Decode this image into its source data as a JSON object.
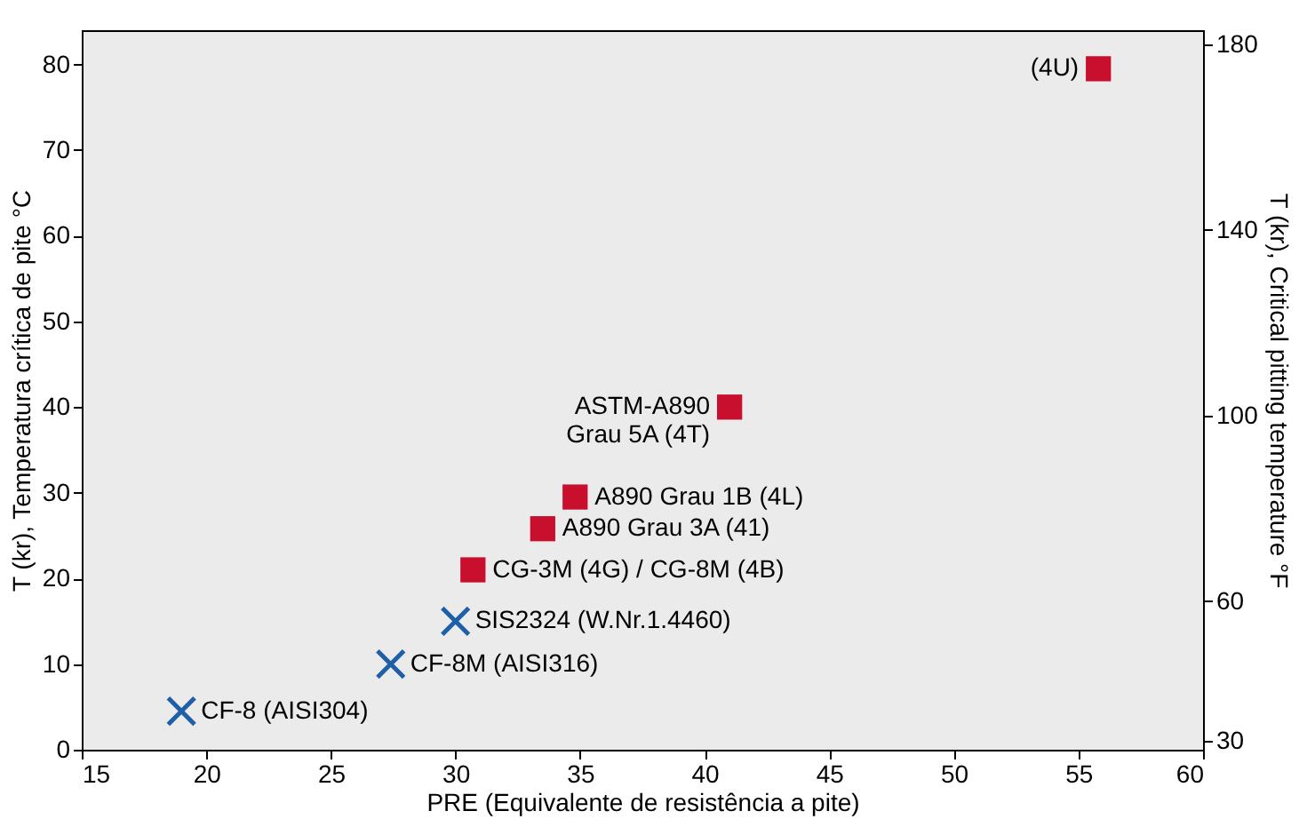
{
  "chart_data": {
    "type": "scatter",
    "xlabel": "PRE (Equivalente de resistência a pite)",
    "ylabel": "T (kr), Temperatura crítica de pite  °C",
    "y2label": "T (kr), Critical pitting temperature °F",
    "xlim": [
      15,
      60
    ],
    "xticks": [
      15,
      20,
      25,
      30,
      35,
      40,
      45,
      50,
      55,
      60
    ],
    "ylim": [
      0,
      84
    ],
    "yticks": [
      0,
      10,
      20,
      30,
      40,
      50,
      60,
      70,
      80
    ],
    "y2lim": [
      28,
      183
    ],
    "y2ticks": [
      30,
      60,
      100,
      140,
      180
    ],
    "grid": false,
    "series": [
      {
        "color": "#c8102e",
        "marker": "square",
        "x": [
          55.8,
          41,
          34.8,
          33.5,
          30.7
        ],
        "values": [
          79.5,
          40,
          29.5,
          25.8,
          21
        ]
      },
      {
        "color": "#1f5fa8",
        "marker": "cross",
        "x": [
          30,
          27.4,
          19
        ],
        "values": [
          15,
          10,
          4.5
        ]
      }
    ],
    "annotations": [
      {
        "text": "(4U)",
        "x": 55.8,
        "y": 79.5
      },
      {
        "text": "ASTM-A890\nGrau 5A (4T)",
        "x": 41,
        "y": 40
      },
      {
        "text": "A890 Grau 1B (4L)",
        "x": 34.8,
        "y": 29.5
      },
      {
        "text": "A890 Grau  3A (41)",
        "x": 33.5,
        "y": 25.8
      },
      {
        "text": "CG-3M (4G) / CG-8M (4B)",
        "x": 30.7,
        "y": 21
      },
      {
        "text": "SIS2324 (W.Nr.1.4460)",
        "x": 30,
        "y": 15
      },
      {
        "text": "CF-8M (AISI316)",
        "x": 27.4,
        "y": 10
      },
      {
        "text": "CF-8 (AISI304)",
        "x": 19,
        "y": 4.5
      }
    ]
  }
}
